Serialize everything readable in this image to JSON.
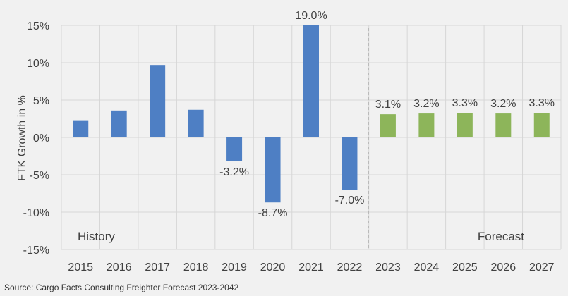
{
  "chart_data": {
    "type": "bar",
    "ylabel": "FTK Growth in %",
    "ylim": [
      -15,
      15
    ],
    "yticks": [
      15,
      10,
      5,
      0,
      -5,
      -10,
      -15
    ],
    "ytick_labels": [
      "15%",
      "10%",
      "5%",
      "0%",
      "-5%",
      "-10%",
      "-15%"
    ],
    "grid": true,
    "categories": [
      "2015",
      "2016",
      "2017",
      "2018",
      "2019",
      "2020",
      "2021",
      "2022",
      "2023",
      "2024",
      "2025",
      "2026",
      "2027"
    ],
    "values": [
      2.3,
      3.6,
      9.7,
      3.7,
      -3.2,
      -8.7,
      19.0,
      -7.0,
      3.1,
      3.2,
      3.3,
      3.2,
      3.3
    ],
    "data_labels": [
      "",
      "",
      "",
      "",
      "-3.2%",
      "-8.7%",
      "19.0%",
      "-7.0%",
      "3.1%",
      "3.2%",
      "3.3%",
      "3.2%",
      "3.3%"
    ],
    "colors": {
      "history": "#4e7fc4",
      "forecast": "#8db55a",
      "grid": "#d6d6d6",
      "divider": "#333333"
    },
    "history_count": 8,
    "annotations": {
      "history": "History",
      "forecast": "Forecast"
    }
  },
  "source": "Source: Cargo Facts Consulting Freighter Forecast 2023-2042"
}
